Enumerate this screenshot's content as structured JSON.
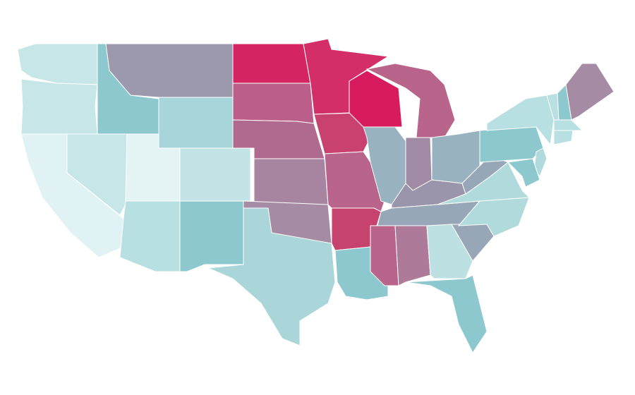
{
  "map": {
    "regions": [
      {
        "color": "#c6e6e8"
      },
      {
        "color": "#c6e6e8"
      },
      {
        "color": "#e0f2f3"
      },
      {
        "color": "#c6e6e8"
      },
      {
        "color": "#8cc8cd"
      },
      {
        "color": "#9d99ad"
      },
      {
        "color": "#a6d6d9"
      },
      {
        "color": "#e4f3f4"
      },
      {
        "color": "#c2e4e6"
      },
      {
        "color": "#b8dfe1"
      },
      {
        "color": "#8cc8cd"
      },
      {
        "color": "#d42462"
      },
      {
        "color": "#bb5f8a"
      },
      {
        "color": "#b0698f"
      },
      {
        "color": "#a7849f"
      },
      {
        "color": "#a58ba3"
      },
      {
        "color": "#aad6d9"
      },
      {
        "color": "#d32e68"
      },
      {
        "color": "#c9416f"
      },
      {
        "color": "#b8648b"
      },
      {
        "color": "#c7436f"
      },
      {
        "color": "#8cc8cd"
      },
      {
        "color": "#d81b5f"
      },
      {
        "color": "#98b3bf"
      },
      {
        "color": "#b8648b"
      },
      {
        "color": "#a08aa4"
      },
      {
        "color": "#98b3bf"
      },
      {
        "color": "#9a95ab"
      },
      {
        "color": "#98a7b7"
      },
      {
        "color": "#b8648b"
      },
      {
        "color": "#ad7a99"
      },
      {
        "color": "#bde1e3"
      },
      {
        "color": "#8cc8cd"
      },
      {
        "color": "#98a7b7"
      },
      {
        "color": "#b0dadc"
      },
      {
        "color": "#b0dadc"
      },
      {
        "color": "#98a7b7"
      },
      {
        "color": "#8cc8cd"
      },
      {
        "color": "#b8dfe1"
      },
      {
        "color": "#b0dadc"
      },
      {
        "color": "#8cc8cd"
      },
      {
        "color": "#b8dfe1"
      },
      {
        "color": "#8cc8cd"
      },
      {
        "color": "#a58ba3"
      },
      {
        "color": "#b8dfe1"
      },
      {
        "color": "#b8dfe1"
      }
    ]
  }
}
